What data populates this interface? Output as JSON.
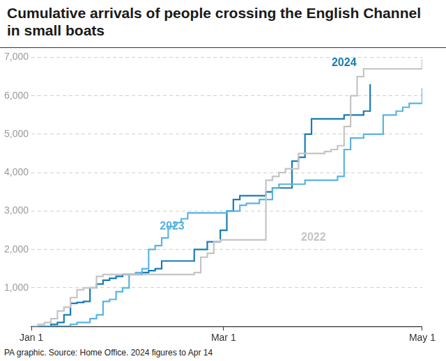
{
  "chart_data": {
    "type": "line",
    "title": "Cumulative arrivals of people crossing the English Channel in small boats",
    "footnote": "PA graphic. Source: Home Office. 2024 figures to Apr 14",
    "x": [
      0,
      2,
      4,
      6,
      8,
      10,
      12,
      14,
      16,
      18,
      20,
      22,
      24,
      26,
      28,
      30,
      32,
      34,
      36,
      38,
      40,
      42,
      44,
      46,
      48,
      50,
      52,
      54,
      56,
      58,
      60,
      62,
      64,
      66,
      68,
      70,
      72,
      74,
      76,
      78,
      80,
      82,
      84,
      86,
      88,
      90,
      92,
      94,
      96,
      98,
      100,
      102,
      104,
      106,
      108,
      110,
      112,
      114,
      116,
      118,
      120
    ],
    "xlim": [
      0,
      120
    ],
    "xticks": [
      {
        "value": 0,
        "label": "Jan 1"
      },
      {
        "value": 59,
        "label": "Mar 1"
      },
      {
        "value": 120,
        "label": "May 1"
      }
    ],
    "ylim": [
      0,
      7000
    ],
    "yticks": [
      {
        "value": 1000,
        "label": "1,000"
      },
      {
        "value": 2000,
        "label": "2,000"
      },
      {
        "value": 3000,
        "label": "3,000"
      },
      {
        "value": 4000,
        "label": "4,000"
      },
      {
        "value": 5000,
        "label": "5,000"
      },
      {
        "value": 6000,
        "label": "6,000"
      },
      {
        "value": 7000,
        "label": "7,000"
      }
    ],
    "grid": true,
    "line_style": "stepped",
    "series": [
      {
        "name": "2022",
        "color": "#c4c4c4",
        "values": [
          0,
          50,
          100,
          200,
          400,
          500,
          750,
          950,
          1000,
          1000,
          1300,
          1350,
          1350,
          1350,
          1350,
          1350,
          1350,
          1350,
          1350,
          1350,
          1350,
          1350,
          1350,
          1350,
          1350,
          1400,
          1800,
          1900,
          2200,
          2250,
          2250,
          2250,
          2250,
          2250,
          2250,
          2250,
          3800,
          3900,
          4000,
          4100,
          4100,
          4500,
          4500,
          4500,
          4500,
          4550,
          4600,
          4700,
          5200,
          6000,
          6500,
          6700,
          6700,
          6700,
          6700,
          6700,
          6700,
          6700,
          6700,
          6700,
          6950
        ]
      },
      {
        "name": "2023",
        "color": "#5ab4e0",
        "values": [
          0,
          0,
          0,
          0,
          0,
          0,
          50,
          100,
          100,
          200,
          300,
          650,
          700,
          900,
          1000,
          1350,
          1400,
          1500,
          2000,
          2100,
          2300,
          2600,
          2700,
          2800,
          2950,
          2950,
          2950,
          2950,
          2950,
          2950,
          3000,
          3000,
          3150,
          3200,
          3200,
          3300,
          3300,
          3600,
          3700,
          3700,
          3700,
          3700,
          3800,
          3800,
          3800,
          3800,
          3800,
          3900,
          4600,
          4900,
          4900,
          5000,
          5000,
          5000,
          5500,
          5500,
          5600,
          5700,
          5800,
          5800,
          6200
        ]
      },
      {
        "name": "2024",
        "color": "#1a7bb5",
        "values": [
          0,
          0,
          0,
          50,
          100,
          300,
          600,
          620,
          650,
          1000,
          1100,
          1200,
          1250,
          1300,
          1350,
          1350,
          1350,
          1400,
          1450,
          1500,
          1700,
          1700,
          1700,
          1700,
          1700,
          2000,
          2000,
          2200,
          2200,
          2500,
          3000,
          3300,
          3400,
          3400,
          3400,
          3400,
          3500,
          3600,
          3600,
          3600,
          4300,
          4400,
          5000,
          5400,
          5400,
          5400,
          5400,
          5400,
          5500,
          5500,
          5500,
          5600,
          6300,
          null,
          null,
          null,
          null,
          null,
          null,
          null,
          null
        ]
      }
    ]
  }
}
